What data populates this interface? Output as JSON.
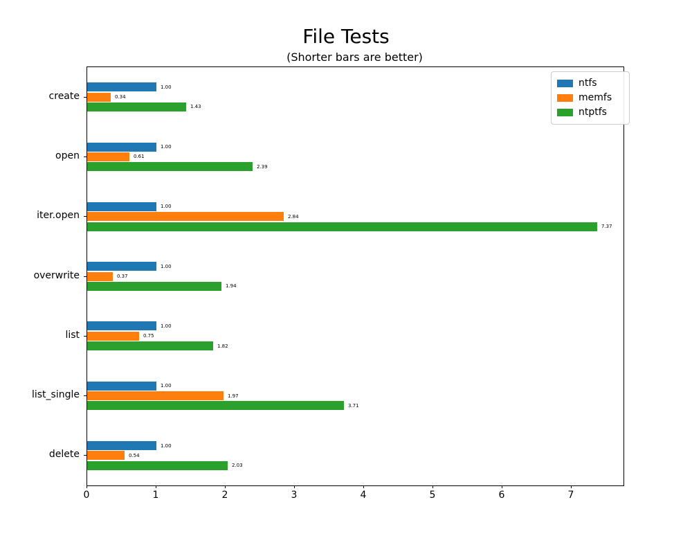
{
  "chart_data": {
    "type": "bar",
    "orientation": "horizontal",
    "title": "File Tests",
    "subtitle": "(Shorter bars are better)",
    "categories": [
      "create",
      "open",
      "iter.open",
      "overwrite",
      "list",
      "list_single",
      "delete"
    ],
    "series": [
      {
        "name": "ntfs",
        "color": "#1f77b4",
        "values": [
          1.0,
          1.0,
          1.0,
          1.0,
          1.0,
          1.0,
          1.0
        ]
      },
      {
        "name": "memfs",
        "color": "#ff7f0e",
        "values": [
          0.34,
          0.61,
          2.84,
          0.37,
          0.75,
          1.97,
          0.54
        ]
      },
      {
        "name": "ntptfs",
        "color": "#2ca02c",
        "values": [
          1.43,
          2.39,
          7.37,
          1.94,
          1.82,
          3.71,
          2.03
        ]
      }
    ],
    "value_label_decimals": 2,
    "xlabel": "",
    "ylabel": "",
    "xlim": [
      0,
      7.75
    ],
    "xticks": [
      0,
      1,
      2,
      3,
      4,
      5,
      6,
      7
    ],
    "grid": false,
    "legend_position": "upper right",
    "background": "#ffffff",
    "spine_color": "#000000"
  }
}
